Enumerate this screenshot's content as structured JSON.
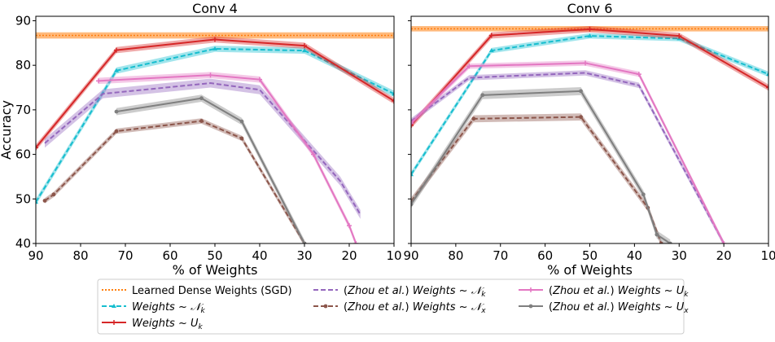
{
  "chart_data": [
    {
      "type": "line",
      "title": "Conv 4",
      "xlabel": "% of Weights",
      "ylabel": "Accuracy",
      "xlim": [
        90,
        10
      ],
      "ylim": [
        40,
        91
      ],
      "xticks": [
        90,
        80,
        70,
        60,
        50,
        40,
        30,
        20,
        10
      ],
      "yticks": [
        40,
        50,
        60,
        70,
        80,
        90
      ],
      "baseline": {
        "name": "Learned Dense Weights (SGD)",
        "value": 86.7,
        "low": 86.0,
        "high": 87.4
      },
      "series": [
        {
          "name": "Weights ~ N_k",
          "x": [
            90,
            72,
            50,
            30,
            10
          ],
          "y": [
            49.3,
            78.8,
            83.7,
            83.3,
            73.6
          ],
          "band": 0.7
        },
        {
          "name": "Weights ~ U_k",
          "x": [
            90,
            72,
            50,
            30,
            10
          ],
          "y": [
            61.5,
            83.4,
            85.8,
            84.4,
            72.0
          ],
          "band": 0.7
        },
        {
          "name": "(Zhou et al.) Weights ~ N_k",
          "x": [
            88,
            75,
            51,
            40,
            22,
            17.5
          ],
          "y": [
            62.5,
            73.6,
            76.0,
            74.5,
            54.0,
            46.5
          ],
          "band": 1.0
        },
        {
          "name": "(Zhou et al.) Weights ~ N_x",
          "x": [
            88,
            86,
            72,
            53,
            44,
            30
          ],
          "y": [
            49.6,
            51.0,
            65.2,
            67.5,
            63.6,
            40.0
          ],
          "band": 0.6
        },
        {
          "name": "(Zhou et al.) Weights ~ U_k",
          "x": [
            76,
            51,
            40,
            28,
            20,
            18.5
          ],
          "y": [
            76.5,
            77.8,
            76.8,
            60.0,
            44.0,
            40.0
          ],
          "band": 0.7
        },
        {
          "name": "(Zhou et al.) Weights ~ U_x",
          "x": [
            72,
            53,
            44,
            30
          ],
          "y": [
            69.6,
            72.6,
            67.4,
            40.0
          ],
          "band": 0.8
        }
      ]
    },
    {
      "type": "line",
      "title": "Conv 6",
      "xlabel": "% of Weights",
      "ylabel": "",
      "xlim": [
        90,
        10
      ],
      "ylim": [
        40,
        91
      ],
      "xticks": [
        90,
        80,
        70,
        60,
        50,
        40,
        30,
        20,
        10
      ],
      "yticks": [
        40,
        50,
        60,
        70,
        80,
        90
      ],
      "baseline": {
        "name": "Learned Dense Weights (SGD)",
        "value": 88.2,
        "low": 87.6,
        "high": 88.8
      },
      "series": [
        {
          "name": "Weights ~ N_k",
          "x": [
            90,
            72,
            50,
            30,
            10
          ],
          "y": [
            55.5,
            83.3,
            86.6,
            86.0,
            78.0
          ],
          "band": 0.6
        },
        {
          "name": "Weights ~ U_k",
          "x": [
            90,
            72,
            50,
            30,
            10
          ],
          "y": [
            66.5,
            86.7,
            88.1,
            86.6,
            75.0
          ],
          "band": 0.7
        },
        {
          "name": "(Zhou et al.) Weights ~ N_k",
          "x": [
            90,
            77,
            51,
            39,
            20
          ],
          "y": [
            67.5,
            77.2,
            78.3,
            75.5,
            40.0
          ],
          "band": 0.6
        },
        {
          "name": "(Zhou et al.) Weights ~ N_x",
          "x": [
            90,
            76,
            52,
            37,
            34
          ],
          "y": [
            49.5,
            68.0,
            68.4,
            48.0,
            40.0
          ],
          "band": 0.8
        },
        {
          "name": "(Zhou et al.) Weights ~ U_k",
          "x": [
            90,
            77,
            51,
            39,
            20
          ],
          "y": [
            67.0,
            79.8,
            80.5,
            78.0,
            40.0
          ],
          "band": 0.6
        },
        {
          "name": "(Zhou et al.) Weights ~ U_x",
          "x": [
            90,
            74,
            52,
            38,
            35,
            32
          ],
          "y": [
            48.8,
            73.3,
            74.2,
            51.0,
            42.0,
            40.0
          ],
          "band": 0.9
        }
      ]
    }
  ],
  "legend": [
    {
      "text": "Learned Dense Weights (SGD)",
      "prefix": "",
      "main": "",
      "sub": "",
      "color": "#ff7f0e",
      "dash": "2,2",
      "marker": "none"
    },
    {
      "text": "Weights ~ N_k",
      "prefix": "",
      "main": "N",
      "sub": "k",
      "color": "#17becf",
      "dash": "6,3",
      "marker": "tri"
    },
    {
      "text": "Weights ~ U_k",
      "prefix": "",
      "main": "U",
      "sub": "k",
      "color": "#d62728",
      "dash": "",
      "marker": "plus"
    },
    {
      "text": "(Zhou et al.) Weights ~ N_k",
      "prefix": "Zhou et al.",
      "main": "N",
      "sub": "k",
      "color": "#9467bd",
      "dash": "6,3",
      "marker": "none"
    },
    {
      "text": "(Zhou et al.) Weights ~ N_x",
      "prefix": "Zhou et al.",
      "main": "N",
      "sub": "x",
      "color": "#8c564b",
      "dash": "6,3",
      "marker": "star"
    },
    {
      "text": "(Zhou et al.) Weights ~ U_k",
      "prefix": "Zhou et al.",
      "main": "U",
      "sub": "k",
      "color": "#e377c2",
      "dash": "",
      "marker": "plus"
    },
    {
      "text": "(Zhou et al.) Weights ~ U_x",
      "prefix": "Zhou et al.",
      "main": "U",
      "sub": "x",
      "color": "#7f7f7f",
      "dash": "",
      "marker": "star"
    }
  ]
}
